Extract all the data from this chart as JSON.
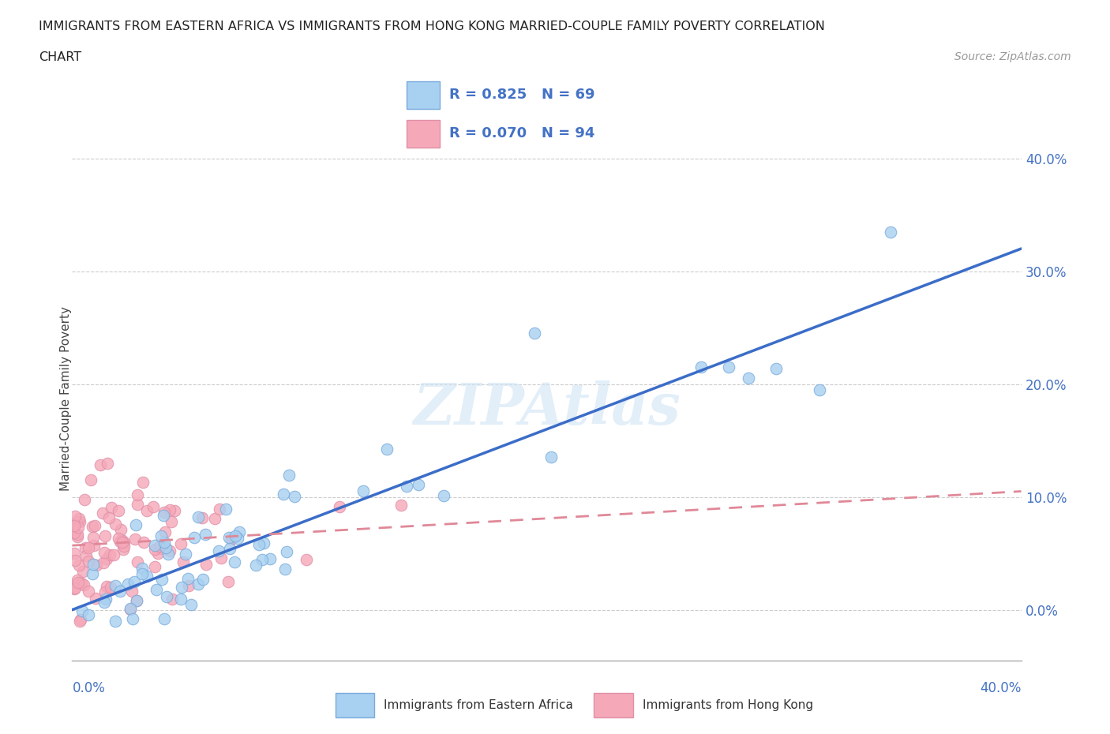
{
  "title_line1": "IMMIGRANTS FROM EASTERN AFRICA VS IMMIGRANTS FROM HONG KONG MARRIED-COUPLE FAMILY POVERTY CORRELATION",
  "title_line2": "CHART",
  "source_text": "Source: ZipAtlas.com",
  "ylabel": "Married-Couple Family Poverty",
  "color_eastern_africa": "#A8D0F0",
  "color_hong_kong": "#F5A8B8",
  "color_line_eastern_africa": "#3B6DC8",
  "color_line_hong_kong": "#E08898",
  "color_text_blue": "#4472C4",
  "xmin": 0.0,
  "xmax": 0.4,
  "ymin": -0.045,
  "ymax": 0.42,
  "ytick_vals": [
    0.0,
    0.1,
    0.2,
    0.3,
    0.4
  ],
  "ytick_labels": [
    "0.0%",
    "10.0%",
    "20.0%",
    "30.0%",
    "40.0%"
  ],
  "ea_line_x0": 0.0,
  "ea_line_y0": 0.0,
  "ea_line_x1": 0.4,
  "ea_line_y1": 0.32,
  "hk_line_x0": 0.0,
  "hk_line_y0": 0.057,
  "hk_line_x1": 0.4,
  "hk_line_y1": 0.105,
  "watermark": "ZIPAtlas",
  "legend_text1": "R = 0.825   N = 69",
  "legend_text2": "R = 0.070   N = 94",
  "bottom_legend1": "Immigrants from Eastern Africa",
  "bottom_legend2": "Immigrants from Hong Kong"
}
